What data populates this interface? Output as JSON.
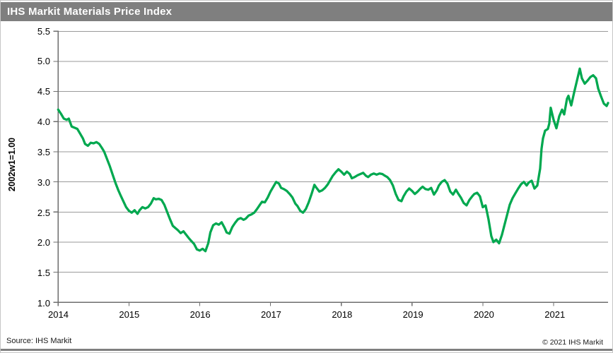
{
  "window": {
    "title": "IHS Markit Materials Price Index"
  },
  "footer": {
    "source": "Source: IHS Markit",
    "copyright": "© 2021 IHS Markit"
  },
  "colors": {
    "line": "#00a84f",
    "grid": "#9a9a9a",
    "axis": "#6e6e6e",
    "titlebar": "#7f7f7f"
  },
  "chart_data": {
    "type": "line",
    "title": "IHS Markit Materials Price Index",
    "xlabel": "",
    "ylabel": "2002w1=1.00",
    "ylim": [
      1.0,
      5.5
    ],
    "xlim": [
      2014,
      2021.77
    ],
    "grid": true,
    "legend_position": "none",
    "yticks": [
      "1.0",
      "1.5",
      "2.0",
      "2.5",
      "3.0",
      "3.5",
      "4.0",
      "4.5",
      "5.0",
      "5.5"
    ],
    "xticks": [
      "2014",
      "2015",
      "2016",
      "2017",
      "2018",
      "2019",
      "2020",
      "2021"
    ],
    "series": [
      {
        "name": "Materials Price Index (2002w1=1.00)",
        "x": [
          2014.0,
          2014.04,
          2014.08,
          2014.12,
          2014.15,
          2014.19,
          2014.23,
          2014.27,
          2014.31,
          2014.35,
          2014.38,
          2014.42,
          2014.46,
          2014.5,
          2014.54,
          2014.58,
          2014.62,
          2014.65,
          2014.69,
          2014.73,
          2014.77,
          2014.81,
          2014.85,
          2014.88,
          2014.92,
          2014.96,
          2015.0,
          2015.04,
          2015.08,
          2015.12,
          2015.15,
          2015.19,
          2015.23,
          2015.27,
          2015.31,
          2015.35,
          2015.38,
          2015.42,
          2015.46,
          2015.5,
          2015.54,
          2015.58,
          2015.62,
          2015.65,
          2015.69,
          2015.73,
          2015.77,
          2015.81,
          2015.85,
          2015.88,
          2015.92,
          2015.96,
          2016.0,
          2016.04,
          2016.08,
          2016.12,
          2016.15,
          2016.19,
          2016.23,
          2016.27,
          2016.31,
          2016.35,
          2016.38,
          2016.42,
          2016.46,
          2016.5,
          2016.54,
          2016.58,
          2016.62,
          2016.65,
          2016.69,
          2016.73,
          2016.77,
          2016.81,
          2016.85,
          2016.88,
          2016.92,
          2016.96,
          2017.0,
          2017.04,
          2017.08,
          2017.12,
          2017.15,
          2017.19,
          2017.23,
          2017.27,
          2017.31,
          2017.35,
          2017.38,
          2017.42,
          2017.46,
          2017.5,
          2017.54,
          2017.58,
          2017.62,
          2017.65,
          2017.69,
          2017.73,
          2017.77,
          2017.81,
          2017.85,
          2017.88,
          2017.92,
          2017.96,
          2018.0,
          2018.04,
          2018.08,
          2018.12,
          2018.15,
          2018.19,
          2018.23,
          2018.27,
          2018.31,
          2018.35,
          2018.38,
          2018.42,
          2018.46,
          2018.5,
          2018.54,
          2018.58,
          2018.62,
          2018.65,
          2018.69,
          2018.73,
          2018.77,
          2018.81,
          2018.85,
          2018.88,
          2018.92,
          2018.96,
          2019.0,
          2019.04,
          2019.08,
          2019.12,
          2019.15,
          2019.19,
          2019.23,
          2019.27,
          2019.31,
          2019.35,
          2019.38,
          2019.42,
          2019.46,
          2019.5,
          2019.54,
          2019.58,
          2019.62,
          2019.65,
          2019.69,
          2019.73,
          2019.77,
          2019.81,
          2019.85,
          2019.88,
          2019.92,
          2019.96,
          2020.0,
          2020.04,
          2020.08,
          2020.12,
          2020.15,
          2020.19,
          2020.23,
          2020.27,
          2020.31,
          2020.35,
          2020.38,
          2020.42,
          2020.46,
          2020.5,
          2020.54,
          2020.58,
          2020.62,
          2020.65,
          2020.69,
          2020.73,
          2020.77,
          2020.81,
          2020.83,
          2020.85,
          2020.88,
          2020.92,
          2020.94,
          2020.96,
          2021.0,
          2021.04,
          2021.08,
          2021.12,
          2021.15,
          2021.19,
          2021.21,
          2021.25,
          2021.29,
          2021.33,
          2021.37,
          2021.4,
          2021.44,
          2021.48,
          2021.52,
          2021.56,
          2021.6,
          2021.63,
          2021.67,
          2021.71,
          2021.75,
          2021.77
        ],
        "y": [
          4.2,
          4.13,
          4.05,
          4.03,
          4.05,
          3.92,
          3.9,
          3.88,
          3.8,
          3.72,
          3.63,
          3.6,
          3.65,
          3.64,
          3.66,
          3.63,
          3.56,
          3.5,
          3.38,
          3.26,
          3.12,
          2.98,
          2.86,
          2.78,
          2.68,
          2.58,
          2.52,
          2.49,
          2.53,
          2.47,
          2.53,
          2.58,
          2.56,
          2.58,
          2.64,
          2.73,
          2.71,
          2.72,
          2.7,
          2.62,
          2.5,
          2.38,
          2.27,
          2.24,
          2.2,
          2.15,
          2.18,
          2.12,
          2.06,
          2.02,
          1.97,
          1.88,
          1.86,
          1.89,
          1.85,
          1.98,
          2.16,
          2.28,
          2.31,
          2.29,
          2.33,
          2.24,
          2.16,
          2.14,
          2.25,
          2.32,
          2.38,
          2.4,
          2.37,
          2.39,
          2.44,
          2.46,
          2.49,
          2.55,
          2.62,
          2.67,
          2.66,
          2.74,
          2.84,
          2.92,
          3.0,
          2.97,
          2.9,
          2.88,
          2.85,
          2.8,
          2.74,
          2.64,
          2.6,
          2.52,
          2.49,
          2.55,
          2.66,
          2.8,
          2.95,
          2.9,
          2.84,
          2.86,
          2.9,
          2.96,
          3.04,
          3.1,
          3.16,
          3.21,
          3.17,
          3.12,
          3.17,
          3.13,
          3.06,
          3.08,
          3.11,
          3.13,
          3.15,
          3.1,
          3.08,
          3.12,
          3.14,
          3.12,
          3.14,
          3.13,
          3.1,
          3.08,
          3.03,
          2.94,
          2.8,
          2.7,
          2.68,
          2.76,
          2.84,
          2.89,
          2.85,
          2.8,
          2.84,
          2.89,
          2.92,
          2.88,
          2.87,
          2.9,
          2.79,
          2.86,
          2.94,
          3.0,
          3.03,
          2.97,
          2.84,
          2.79,
          2.87,
          2.81,
          2.74,
          2.65,
          2.61,
          2.7,
          2.76,
          2.8,
          2.82,
          2.76,
          2.58,
          2.61,
          2.38,
          2.1,
          2.0,
          2.04,
          1.98,
          2.12,
          2.3,
          2.48,
          2.62,
          2.73,
          2.81,
          2.89,
          2.96,
          3.0,
          2.94,
          2.99,
          3.02,
          2.89,
          2.94,
          3.22,
          3.55,
          3.72,
          3.85,
          3.88,
          3.97,
          4.23,
          4.03,
          3.89,
          4.09,
          4.2,
          4.12,
          4.38,
          4.43,
          4.27,
          4.48,
          4.68,
          4.88,
          4.72,
          4.63,
          4.68,
          4.74,
          4.77,
          4.72,
          4.55,
          4.42,
          4.3,
          4.26,
          4.31
        ]
      }
    ]
  }
}
